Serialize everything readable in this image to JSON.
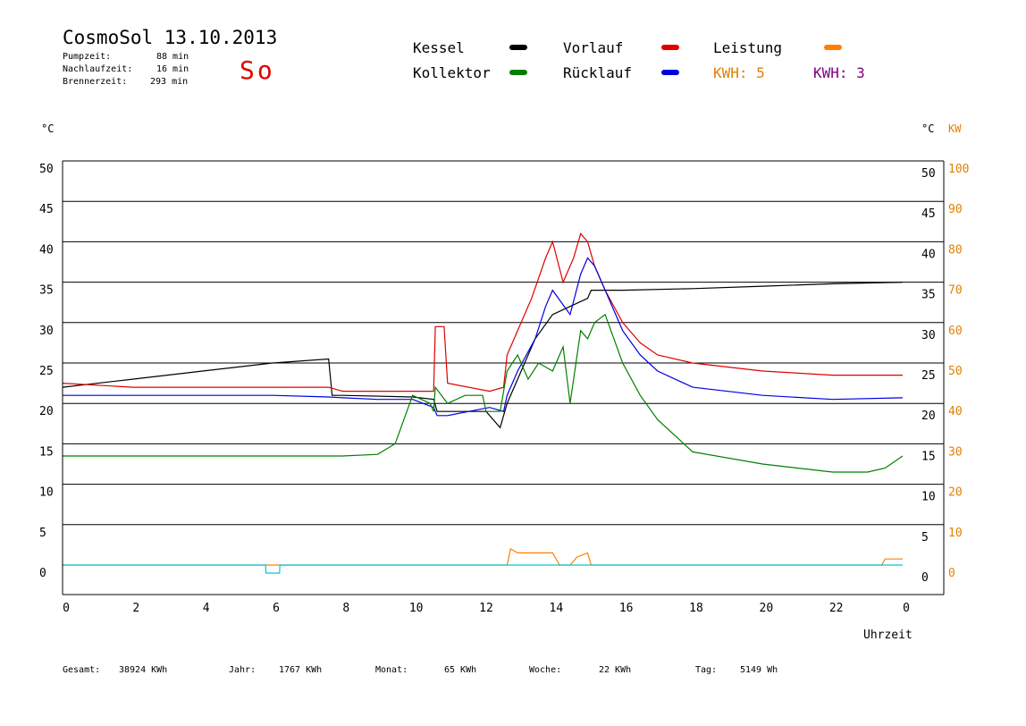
{
  "header": {
    "title": "CosmoSol 13.10.2013",
    "day": "So",
    "stats": [
      {
        "label": "Pumpzeit:",
        "value": "88 min"
      },
      {
        "label": "Nachlaufzeit:",
        "value": "16 min"
      },
      {
        "label": "Brennerzeit:",
        "value": "293 min"
      }
    ]
  },
  "legend": {
    "kessel": {
      "label": "Kessel",
      "color": "#000000"
    },
    "vorlauf": {
      "label": "Vorlauf",
      "color": "#e00000"
    },
    "leistung": {
      "label": "Leistung",
      "color": "#ff8000"
    },
    "kollektor": {
      "label": "Kollektor",
      "color": "#008000"
    },
    "ruecklauf": {
      "label": "Rücklauf",
      "color": "#0000e0"
    },
    "kwh1": {
      "label": "KWH: 5",
      "color": "#e08000"
    },
    "kwh2": {
      "label": "KWH: 3",
      "color": "#800080"
    }
  },
  "footer": [
    {
      "label": "Gesamt:",
      "value": "38924 KWh"
    },
    {
      "label": "Jahr:",
      "value": "1767 KWh"
    },
    {
      "label": "Monat:",
      "value": "65 KWh"
    },
    {
      "label": "Woche:",
      "value": "22 KWh"
    },
    {
      "label": "Tag:",
      "value": "5149 Wh"
    }
  ],
  "chart_data": {
    "type": "line",
    "xlabel": "Uhrzeit",
    "y_left_unit": "°C",
    "y_right_units": [
      "°C",
      "KW"
    ],
    "xlim": [
      0,
      24
    ],
    "ylim": [
      0,
      50
    ],
    "y2lim": [
      0,
      100
    ],
    "x_ticks": [
      "0",
      "2",
      "4",
      "6",
      "8",
      "10",
      "12",
      "14",
      "16",
      "18",
      "20",
      "22",
      "0"
    ],
    "y_ticks": [
      0,
      5,
      10,
      15,
      20,
      25,
      30,
      35,
      40,
      45,
      50
    ],
    "y2_ticks": [
      0,
      10,
      20,
      30,
      40,
      50,
      60,
      70,
      80,
      90,
      100
    ],
    "series": [
      {
        "name": "Kessel",
        "color": "#000000",
        "x": [
          0,
          2,
          4,
          6,
          7.6,
          7.7,
          8,
          10,
          10.6,
          10.7,
          12.1,
          12.5,
          12.7,
          13.0,
          13.5,
          14.0,
          14.5,
          15.0,
          15.1,
          15.5,
          16,
          18,
          20,
          22,
          24
        ],
        "y": [
          22,
          23,
          24,
          25,
          25.5,
          21,
          21,
          20.8,
          20.5,
          19,
          19,
          17,
          20,
          23,
          28,
          31,
          32,
          33,
          34,
          34,
          34,
          34.2,
          34.5,
          34.8,
          35
        ]
      },
      {
        "name": "Vorlauf",
        "color": "#e00000",
        "x": [
          0,
          2,
          4,
          6,
          7.6,
          8,
          9,
          10,
          10.6,
          10.65,
          10.9,
          11,
          12.2,
          12.6,
          12.7,
          13.0,
          13.4,
          13.8,
          14.0,
          14.3,
          14.6,
          14.8,
          15.0,
          15.2,
          15.5,
          16,
          16.5,
          17,
          18,
          20,
          22,
          24
        ],
        "y": [
          22.5,
          22,
          22,
          22,
          22,
          21.5,
          21.5,
          21.5,
          21.5,
          29.5,
          29.5,
          22.5,
          21.5,
          22,
          26,
          29,
          33,
          38,
          40,
          35,
          38,
          41,
          40,
          37,
          34,
          30,
          27.5,
          26,
          25,
          24,
          23.5,
          23.5
        ]
      },
      {
        "name": "Rücklauf",
        "color": "#0000e0",
        "x": [
          0,
          2,
          4,
          6,
          7.6,
          8,
          9,
          10,
          10.6,
          10.7,
          11.0,
          12.2,
          12.6,
          12.7,
          13.0,
          13.5,
          13.8,
          14.0,
          14.5,
          14.8,
          15.0,
          15.2,
          15.5,
          16,
          16.5,
          17,
          18,
          20,
          22,
          24
        ],
        "y": [
          21,
          21,
          21,
          21,
          20.8,
          20.7,
          20.5,
          20.5,
          19.5,
          18.5,
          18.5,
          19.5,
          19,
          21,
          24,
          28,
          32,
          34,
          31,
          36,
          38,
          37,
          34,
          29,
          26,
          24,
          22,
          21,
          20.5,
          20.7
        ]
      },
      {
        "name": "Kollektor",
        "color": "#008000",
        "x": [
          0,
          2,
          4,
          6,
          7,
          8,
          9,
          9.5,
          10,
          10.5,
          10.6,
          10.65,
          11,
          11.5,
          12,
          12.1,
          12.5,
          12.7,
          13.0,
          13.3,
          13.6,
          14.0,
          14.3,
          14.5,
          14.8,
          15.0,
          15.2,
          15.5,
          16,
          16.5,
          17,
          18,
          20,
          22,
          23,
          23.5,
          24
        ],
        "y": [
          13.5,
          13.5,
          13.5,
          13.5,
          13.5,
          13.5,
          13.7,
          15,
          21,
          20,
          19,
          22,
          20,
          21,
          21,
          19,
          19,
          24,
          26,
          23,
          25,
          24,
          27,
          20,
          29,
          28,
          30,
          31,
          25,
          21,
          18,
          14,
          12.5,
          11.5,
          11.5,
          12,
          13.5
        ]
      },
      {
        "name": "Leistung",
        "color": "#ff8000",
        "axis": "right",
        "x": [
          0,
          12.7,
          12.8,
          13.0,
          13.5,
          14.0,
          14.2,
          14.5,
          14.7,
          15.0,
          15.1,
          23.4,
          23.5,
          24
        ],
        "y": [
          0,
          0,
          4,
          3,
          3,
          3,
          0,
          0,
          2,
          3,
          0,
          0,
          1.5,
          1.5
        ]
      },
      {
        "name": "Pumpe",
        "color": "#00c8d8",
        "axis": "right",
        "x": [
          0,
          5.8,
          5.81,
          6.2,
          6.21,
          24
        ],
        "y": [
          0,
          0,
          -2,
          -2,
          0,
          0
        ]
      }
    ]
  }
}
